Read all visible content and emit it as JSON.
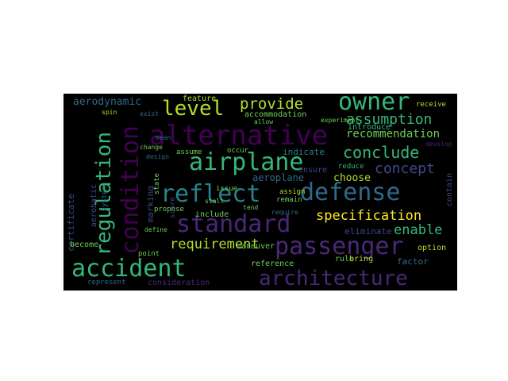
{
  "palette": {
    "background": "#000000",
    "dark_purple": "#440154",
    "purple": "#482878",
    "indigo": "#3e4989",
    "blue": "#31688e",
    "teal": "#26828e",
    "green_teal": "#1f9e89",
    "green": "#35b779",
    "lime": "#6ece58",
    "yellow_green": "#b5de2b",
    "yellow": "#fde725"
  },
  "words": [
    "alternative",
    "airplane",
    "owner",
    "regulation",
    "condition",
    "standard",
    "defense",
    "reflect",
    "passenger",
    "accident",
    "architecture",
    "level",
    "provide",
    "assumption",
    "conclude",
    "concept",
    "recommendation",
    "specification",
    "enable",
    "requirement",
    "aerodynamic",
    "aeroplane",
    "accommodation",
    "feature",
    "receive",
    "introduce",
    "indicate",
    "choose",
    "ensure",
    "contain",
    "aerobatic",
    "marking",
    "score",
    "certificate",
    "system",
    "spin",
    "exist",
    "design",
    "change",
    "assume",
    "occur",
    "state",
    "issue",
    "remain",
    "assign",
    "maneuver",
    "propose",
    "define",
    "include",
    "become",
    "eliminate",
    "reference",
    "consideration",
    "represent",
    "point",
    "rule",
    "bring",
    "factor",
    "option",
    "develop",
    "mean",
    "reduce",
    "require",
    "tend",
    "stall",
    "allow",
    "experiment"
  ]
}
